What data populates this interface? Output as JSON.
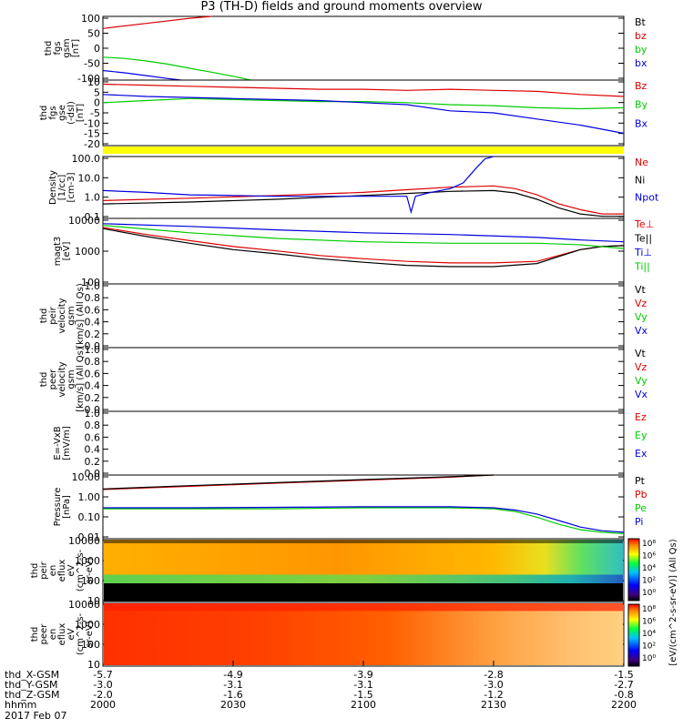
{
  "title": "P3 (TH-D) fields and ground moments overview",
  "chart_data": [
    {
      "id": "fgs_gsm",
      "type": "line",
      "ylabel": [
        "thd",
        "fgs",
        "gsm",
        "[nT]"
      ],
      "ylim": [
        -100,
        100
      ],
      "yticks": [
        "100",
        "50",
        "0",
        "-50",
        "-100"
      ],
      "legend": [
        {
          "name": "Bt",
          "color": "#000000"
        },
        {
          "name": "bz",
          "color": "#dd0000"
        },
        {
          "name": "by",
          "color": "#00cc00"
        },
        {
          "name": "bx",
          "color": "#0000dd"
        }
      ],
      "series": [
        {
          "name": "bz",
          "color": "#dd0000",
          "x": [
            0,
            10,
            20,
            25
          ],
          "y": [
            62,
            78,
            94,
            102
          ]
        },
        {
          "name": "by",
          "color": "#00cc00",
          "x": [
            0,
            5,
            10,
            15,
            20,
            25,
            30,
            34
          ],
          "y": [
            -28,
            -32,
            -40,
            -50,
            -63,
            -75,
            -88,
            -100
          ]
        },
        {
          "name": "bx",
          "color": "#0000dd",
          "x": [
            0,
            5,
            10,
            15,
            18
          ],
          "y": [
            -70,
            -77,
            -86,
            -95,
            -101
          ]
        }
      ]
    },
    {
      "id": "fgs_gse",
      "type": "line",
      "ylabel": [
        "thd",
        "fgs",
        "gse",
        "(-dsl)",
        "[nT]"
      ],
      "ylim": [
        -21,
        11
      ],
      "yticks": [
        "10",
        "5",
        "0",
        "-5",
        "-10",
        "-15",
        "-20"
      ],
      "legend": [
        {
          "name": "Bz",
          "color": "#dd0000"
        },
        {
          "name": "By",
          "color": "#00cc00"
        },
        {
          "name": "Bx",
          "color": "#0000dd"
        }
      ],
      "series": [
        {
          "name": "Bz",
          "color": "#dd0000",
          "x": [
            0,
            10,
            20,
            30,
            40,
            50,
            60,
            70,
            80,
            90,
            100,
            110,
            120
          ],
          "y": [
            9,
            8.5,
            8,
            7.5,
            7,
            6.5,
            6.5,
            6,
            6.5,
            6,
            5.5,
            4,
            3
          ]
        },
        {
          "name": "By",
          "color": "#00cc00",
          "x": [
            0,
            10,
            20,
            30,
            40,
            50,
            60,
            70,
            80,
            90,
            100,
            110,
            120
          ],
          "y": [
            0,
            1,
            2,
            1.5,
            1,
            0.5,
            0.5,
            0,
            -1,
            -1.5,
            -2.5,
            -3,
            -2.5
          ]
        },
        {
          "name": "Bx",
          "color": "#0000dd",
          "x": [
            0,
            10,
            20,
            30,
            40,
            50,
            60,
            70,
            80,
            90,
            100,
            110,
            120
          ],
          "y": [
            4,
            3,
            2.5,
            2,
            1.5,
            1,
            0,
            -1,
            -4,
            -5,
            -8,
            -11,
            -15
          ]
        }
      ]
    },
    {
      "id": "density",
      "type": "line",
      "log": true,
      "ylabel": [
        "Density",
        "[1/cc]",
        "[cm-3]"
      ],
      "ylim": [
        0.07,
        120
      ],
      "yticks": [
        "100.0",
        "10.0",
        "1.0",
        "0.1"
      ],
      "legend": [
        {
          "name": "Ne",
          "color": "#dd0000"
        },
        {
          "name": "Ni",
          "color": "#000000"
        },
        {
          "name": "Npot",
          "color": "#0000dd"
        }
      ],
      "series": [
        {
          "name": "Ne",
          "color": "#dd0000",
          "x": [
            0,
            20,
            40,
            60,
            70,
            80,
            90,
            95,
            100,
            105,
            110,
            115,
            120
          ],
          "y": [
            0.6,
            0.8,
            1.1,
            1.6,
            2.2,
            3,
            3.5,
            2.5,
            1.2,
            0.4,
            0.2,
            0.12,
            0.12
          ]
        },
        {
          "name": "Ni",
          "color": "#000000",
          "x": [
            0,
            20,
            40,
            60,
            70,
            80,
            90,
            95,
            100,
            105,
            110,
            115,
            120
          ],
          "y": [
            0.4,
            0.5,
            0.7,
            1.1,
            1.4,
            1.8,
            2,
            1.5,
            0.7,
            0.25,
            0.12,
            0.09,
            0.09
          ]
        },
        {
          "name": "Npot",
          "color": "#0000dd",
          "x": [
            0,
            10,
            20,
            30,
            40,
            60,
            70,
            71,
            72,
            75,
            80,
            83,
            86,
            88,
            90
          ],
          "y": [
            2,
            1.6,
            1.2,
            1.1,
            1,
            1,
            1,
            0.15,
            1,
            1.5,
            2.5,
            5,
            30,
            90,
            130
          ]
        }
      ]
    },
    {
      "id": "temperature",
      "type": "line",
      "log": true,
      "ylabel": [
        "magt3",
        "[eV]"
      ],
      "ylim": [
        80,
        12000
      ],
      "yticks": [
        "10000",
        "1000",
        "100"
      ],
      "legend": [
        {
          "name": "Te⊥",
          "color": "#dd0000"
        },
        {
          "name": "Te||",
          "color": "#000000"
        },
        {
          "name": "Ti⊥",
          "color": "#0000dd"
        },
        {
          "name": "Ti||",
          "color": "#00cc00"
        }
      ],
      "series": [
        {
          "name": "Te⊥",
          "color": "#dd0000",
          "x": [
            0,
            10,
            20,
            30,
            40,
            50,
            60,
            70,
            80,
            90,
            100,
            105,
            110,
            115,
            120
          ],
          "y": [
            6000,
            3500,
            2200,
            1400,
            1000,
            700,
            550,
            450,
            400,
            400,
            450,
            700,
            1100,
            1400,
            1500
          ]
        },
        {
          "name": "Te||",
          "color": "#000000",
          "x": [
            0,
            10,
            20,
            30,
            40,
            50,
            60,
            70,
            80,
            90,
            100,
            105,
            110,
            115,
            120
          ],
          "y": [
            5500,
            3000,
            1800,
            1100,
            800,
            550,
            420,
            330,
            300,
            300,
            380,
            650,
            1100,
            1400,
            1500
          ]
        },
        {
          "name": "Ti⊥",
          "color": "#0000dd",
          "x": [
            0,
            20,
            40,
            60,
            80,
            100,
            110,
            120
          ],
          "y": [
            8000,
            6500,
            5000,
            4000,
            3500,
            2800,
            2300,
            2000
          ]
        },
        {
          "name": "Ti||",
          "color": "#00cc00",
          "x": [
            0,
            20,
            40,
            60,
            80,
            100,
            110,
            120
          ],
          "y": [
            7000,
            4000,
            2600,
            2000,
            1800,
            1800,
            1600,
            1200
          ]
        }
      ]
    },
    {
      "id": "peir_velocity",
      "type": "line",
      "ylabel": [
        "thd",
        "peir",
        "velocity",
        "gsm",
        "[km/s] (All Qs)"
      ],
      "ylim": [
        0,
        1
      ],
      "yticks": [
        "1.0",
        "0.8",
        "0.6",
        "0.4",
        "0.2",
        "0.0"
      ],
      "legend": [
        {
          "name": "Vt",
          "color": "#000000"
        },
        {
          "name": "Vz",
          "color": "#dd0000"
        },
        {
          "name": "Vy",
          "color": "#00cc00"
        },
        {
          "name": "Vx",
          "color": "#0000dd"
        }
      ],
      "series": []
    },
    {
      "id": "peer_velocity",
      "type": "line",
      "ylabel": [
        "thd",
        "peer",
        "velocity",
        "gsm",
        "[km/s] (All Qs)"
      ],
      "ylim": [
        0,
        1
      ],
      "yticks": [
        "1.0",
        "0.8",
        "0.6",
        "0.4",
        "0.2",
        "0.0"
      ],
      "legend": [
        {
          "name": "Vt",
          "color": "#000000"
        },
        {
          "name": "Vz",
          "color": "#dd0000"
        },
        {
          "name": "Vy",
          "color": "#00cc00"
        },
        {
          "name": "Vx",
          "color": "#0000dd"
        }
      ],
      "series": []
    },
    {
      "id": "efield",
      "type": "line",
      "ylabel": [
        "E=-VxB",
        "[mV/m]"
      ],
      "ylim": [
        0,
        1
      ],
      "yticks": [
        "1.0",
        "0.8",
        "0.6",
        "0.4",
        "0.2",
        "0.0"
      ],
      "legend": [
        {
          "name": "Ez",
          "color": "#dd0000"
        },
        {
          "name": "Ey",
          "color": "#00cc00"
        },
        {
          "name": "Ex",
          "color": "#0000dd"
        }
      ],
      "series": []
    },
    {
      "id": "pressure",
      "type": "line",
      "log": true,
      "ylabel": [
        "Pressure",
        "[nPa]"
      ],
      "ylim": [
        0.008,
        25
      ],
      "yticks": [
        "10.00",
        "1.00",
        "0.10",
        "0.01"
      ],
      "legend": [
        {
          "name": "Pt",
          "color": "#000000"
        },
        {
          "name": "Pb",
          "color": "#dd0000"
        },
        {
          "name": "Pe",
          "color": "#00cc00"
        },
        {
          "name": "Pi",
          "color": "#0000dd"
        }
      ],
      "series": [
        {
          "name": "Pb",
          "color": "#dd0000",
          "x": [
            0,
            20,
            40,
            60,
            80,
            90
          ],
          "y": [
            4,
            6,
            9,
            13,
            19,
            25
          ]
        },
        {
          "name": "Pt",
          "color": "#000000",
          "x": [
            0,
            20,
            40,
            60,
            80,
            90
          ],
          "y": [
            4.3,
            6.5,
            9.5,
            14,
            20,
            26
          ]
        },
        {
          "name": "Pe",
          "color": "#00cc00",
          "x": [
            0,
            20,
            40,
            60,
            80,
            90,
            95,
            100,
            105,
            110,
            115,
            120
          ],
          "y": [
            0.35,
            0.35,
            0.35,
            0.4,
            0.4,
            0.35,
            0.25,
            0.12,
            0.05,
            0.025,
            0.018,
            0.015
          ]
        },
        {
          "name": "Pi",
          "color": "#0000dd",
          "x": [
            0,
            20,
            40,
            60,
            80,
            90,
            95,
            100,
            105,
            110,
            115,
            120
          ],
          "y": [
            0.4,
            0.4,
            0.42,
            0.45,
            0.45,
            0.4,
            0.3,
            0.18,
            0.08,
            0.035,
            0.022,
            0.018
          ]
        }
      ]
    },
    {
      "id": "peir_spectrogram",
      "type": "heatmap",
      "ylabel": [
        "thd",
        "peir",
        "en",
        "eflux",
        "eV",
        "(cm^2-s-",
        "sr-eV)"
      ],
      "yticks": [
        "10000",
        "1000",
        "100",
        "10"
      ]
    },
    {
      "id": "peer_spectrogram",
      "type": "heatmap",
      "ylabel": [
        "thd",
        "peer",
        "en",
        "eflux",
        "eV",
        "(cm^2-s-",
        "sr-eV)"
      ],
      "yticks": [
        "10000",
        "1000",
        "100",
        "10"
      ]
    }
  ],
  "colorbar": {
    "label": "[eV/(cm^2-s-sr-eV)] (All Qs)",
    "ticks": [
      "10⁸",
      "10⁶",
      "10⁴",
      "10²",
      "10⁰"
    ]
  },
  "xaxis": {
    "range_minutes": [
      0,
      120
    ],
    "rows": [
      {
        "label": "thd_X-GSM",
        "values": [
          "-5.7",
          "-4.9",
          "-3.9",
          "-2.8",
          "-1.5"
        ]
      },
      {
        "label": "thd_Y-GSM",
        "values": [
          "-3.0",
          "-3.1",
          "-3.1",
          "-3.0",
          "-2.7"
        ]
      },
      {
        "label": "thd_Z-GSM",
        "values": [
          "-2.0",
          "-1.6",
          "-1.5",
          "-1.2",
          "-0.8"
        ]
      },
      {
        "label": "hhmm",
        "values": [
          "2000",
          "2030",
          "2100",
          "2130",
          "2200"
        ]
      }
    ],
    "date": "2017 Feb 07"
  }
}
